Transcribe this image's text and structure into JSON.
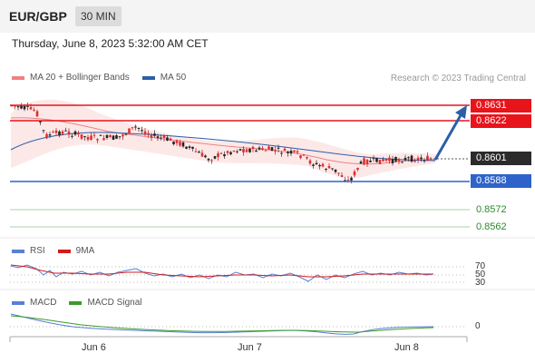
{
  "header": {
    "symbol": "EUR/GBP",
    "timeframe": "30 MIN"
  },
  "datetime": "Thursday, June 8, 2023 5:32:00 AM CET",
  "legend_main": {
    "ma20": "MA 20 + Bollinger Bands",
    "ma50": "MA 50"
  },
  "credit": "Research © 2023 Trading Central",
  "levels": {
    "r2": "0.8631",
    "r1": "0.8622",
    "last": "0.8601",
    "s1": "0.8588",
    "s2": "0.8572",
    "s3": "0.8562"
  },
  "rsi": {
    "legend_rsi": "RSI",
    "legend_ma": "9MA",
    "level_70": "70",
    "level_50": "50",
    "level_30": "30"
  },
  "macd": {
    "legend_macd": "MACD",
    "legend_signal": "MACD Signal",
    "zero": "0"
  },
  "xaxis": {
    "d1": "Jun 6",
    "d2": "Jun 7",
    "d3": "Jun 8"
  },
  "colors": {
    "resistance": "#e8141b",
    "support": "#2e63c9",
    "green_level": "#7ab87a",
    "last": "#2b2b2b",
    "arrow": "#2d5ea8"
  }
}
